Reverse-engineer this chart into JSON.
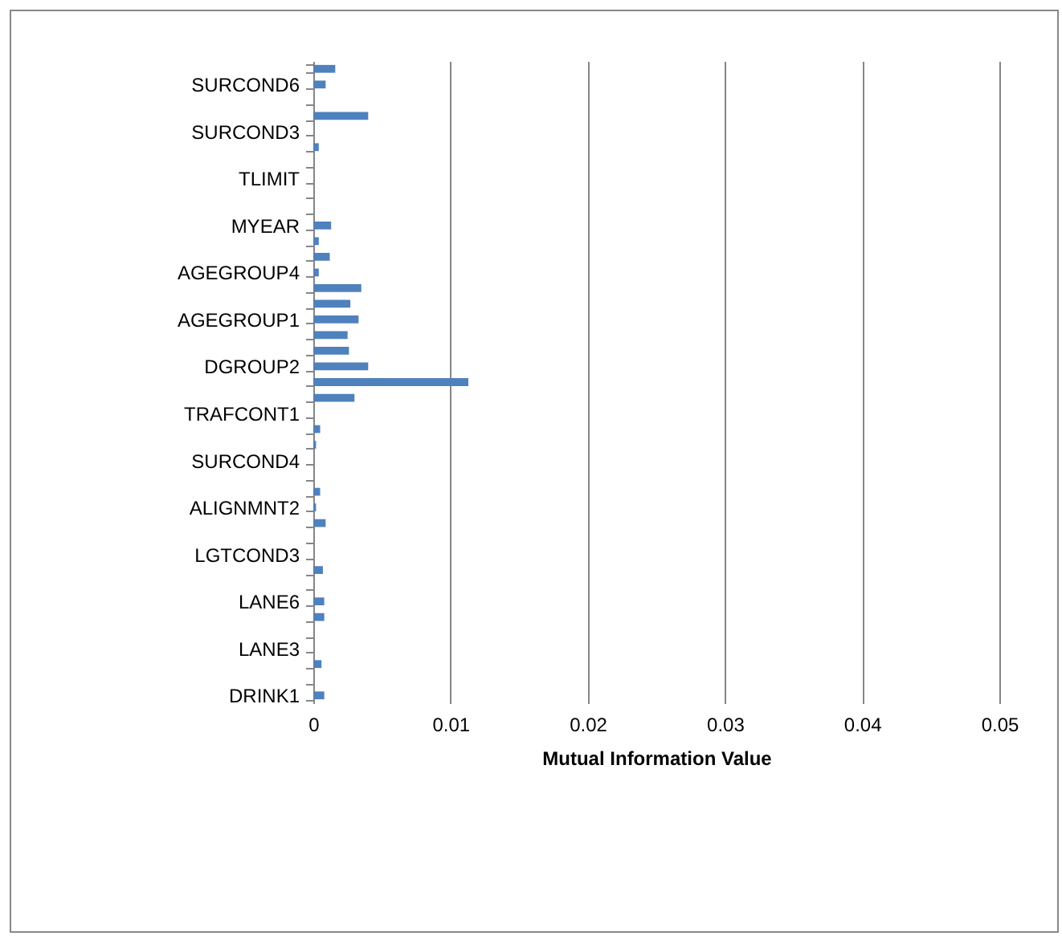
{
  "chart_data": {
    "type": "bar",
    "orientation": "horizontal",
    "xlabel": "Mutual Information Value",
    "categories": [
      null,
      "SURCOND6",
      null,
      null,
      "SURCOND3",
      null,
      null,
      "TLIMIT",
      null,
      null,
      "MYEAR",
      null,
      null,
      "AGEGROUP4",
      null,
      null,
      "AGEGROUP1",
      null,
      null,
      "DGROUP2",
      null,
      null,
      "TRAFCONT1",
      null,
      null,
      "SURCOND4",
      null,
      null,
      "ALIGNMNT2",
      null,
      null,
      "LGTCOND3",
      null,
      null,
      "LANE6",
      null,
      null,
      "LANE3",
      null,
      null,
      "DRINK1"
    ],
    "values": [
      0.0016,
      0.0009,
      0,
      0.004,
      0,
      0.0004,
      0,
      0,
      0,
      0,
      0.0013,
      0.0004,
      0.0012,
      0.0004,
      0.0035,
      0.0027,
      0.0033,
      0.0025,
      0.0026,
      0.004,
      0.0113,
      0.003,
      0,
      0.0005,
      0.0002,
      0,
      0,
      0.0005,
      0.0002,
      0.0009,
      0,
      0,
      0.0007,
      0,
      0.0008,
      0.0008,
      0,
      0,
      0.0006,
      0,
      0.0008
    ],
    "color": "#4f81bd",
    "xlim": [
      0,
      0.05
    ],
    "xticks": [
      0,
      0.01,
      0.02,
      0.03,
      0.04,
      0.05
    ],
    "grid": "x"
  }
}
